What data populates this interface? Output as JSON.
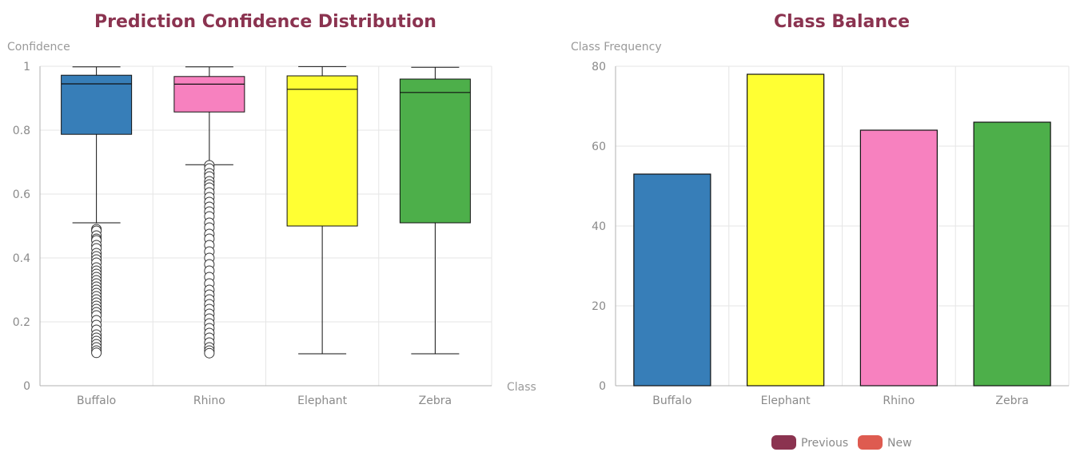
{
  "colors": {
    "title": "#8b3350",
    "grid": "#e6e6e6",
    "axis": "#b0b0b0",
    "text": "#8a8a8a"
  },
  "chart_data": [
    {
      "type": "box",
      "title": "Prediction Confidence Distribution",
      "ylabel": "Confidence",
      "xlabel": "Class",
      "ylim": [
        0,
        1
      ],
      "yticks": [
        0,
        0.2,
        0.4,
        0.6,
        0.8,
        1
      ],
      "ytick_labels": [
        "0",
        "0.2",
        "0.4",
        "0.6",
        "0.8",
        "1"
      ],
      "grid": true,
      "categories": [
        "Buffalo",
        "Rhino",
        "Elephant",
        "Zebra"
      ],
      "boxes": [
        {
          "category": "Buffalo",
          "color": "#377eb8",
          "whisker_low": 0.51,
          "q1": 0.787,
          "median": 0.945,
          "q3": 0.972,
          "whisker_high": 0.998,
          "outliers": [
            0.49,
            0.485,
            0.47,
            0.46,
            0.455,
            0.44,
            0.43,
            0.415,
            0.405,
            0.395,
            0.385,
            0.37,
            0.36,
            0.35,
            0.34,
            0.33,
            0.32,
            0.31,
            0.3,
            0.29,
            0.28,
            0.27,
            0.26,
            0.25,
            0.24,
            0.23,
            0.22,
            0.205,
            0.19,
            0.175,
            0.16,
            0.15,
            0.14,
            0.13,
            0.12,
            0.11,
            0.103
          ]
        },
        {
          "category": "Rhino",
          "color": "#f781bf",
          "whisker_low": 0.692,
          "q1": 0.857,
          "median": 0.944,
          "q3": 0.968,
          "whisker_high": 0.998,
          "outliers": [
            0.69,
            0.68,
            0.665,
            0.655,
            0.64,
            0.63,
            0.62,
            0.605,
            0.59,
            0.575,
            0.56,
            0.545,
            0.53,
            0.51,
            0.495,
            0.475,
            0.46,
            0.44,
            0.42,
            0.4,
            0.38,
            0.36,
            0.34,
            0.32,
            0.3,
            0.285,
            0.27,
            0.255,
            0.24,
            0.225,
            0.21,
            0.195,
            0.18,
            0.165,
            0.15,
            0.135,
            0.12,
            0.11,
            0.102
          ]
        },
        {
          "category": "Elephant",
          "color": "#ffff33",
          "whisker_low": 0.1,
          "q1": 0.5,
          "median": 0.928,
          "q3": 0.97,
          "whisker_high": 0.999,
          "outliers": []
        },
        {
          "category": "Zebra",
          "color": "#4daf4a",
          "whisker_low": 0.1,
          "q1": 0.51,
          "median": 0.918,
          "q3": 0.96,
          "whisker_high": 0.997,
          "outliers": []
        }
      ]
    },
    {
      "type": "bar",
      "title": "Class Balance",
      "ylabel": "Class Frequency",
      "ylim": [
        0,
        80
      ],
      "yticks": [
        0,
        20,
        40,
        60,
        80
      ],
      "ytick_labels": [
        "0",
        "20",
        "40",
        "60",
        "80"
      ],
      "grid": true,
      "categories": [
        "Buffalo",
        "Elephant",
        "Rhino",
        "Zebra"
      ],
      "values": [
        53,
        78,
        64,
        66
      ],
      "bar_colors": [
        "#377eb8",
        "#ffff33",
        "#f781bf",
        "#4daf4a"
      ],
      "legend": {
        "placement": "bottom-right",
        "entries": [
          {
            "label": "Previous",
            "color": "#8b3350"
          },
          {
            "label": "New",
            "color": "#de5b50"
          }
        ]
      }
    }
  ]
}
